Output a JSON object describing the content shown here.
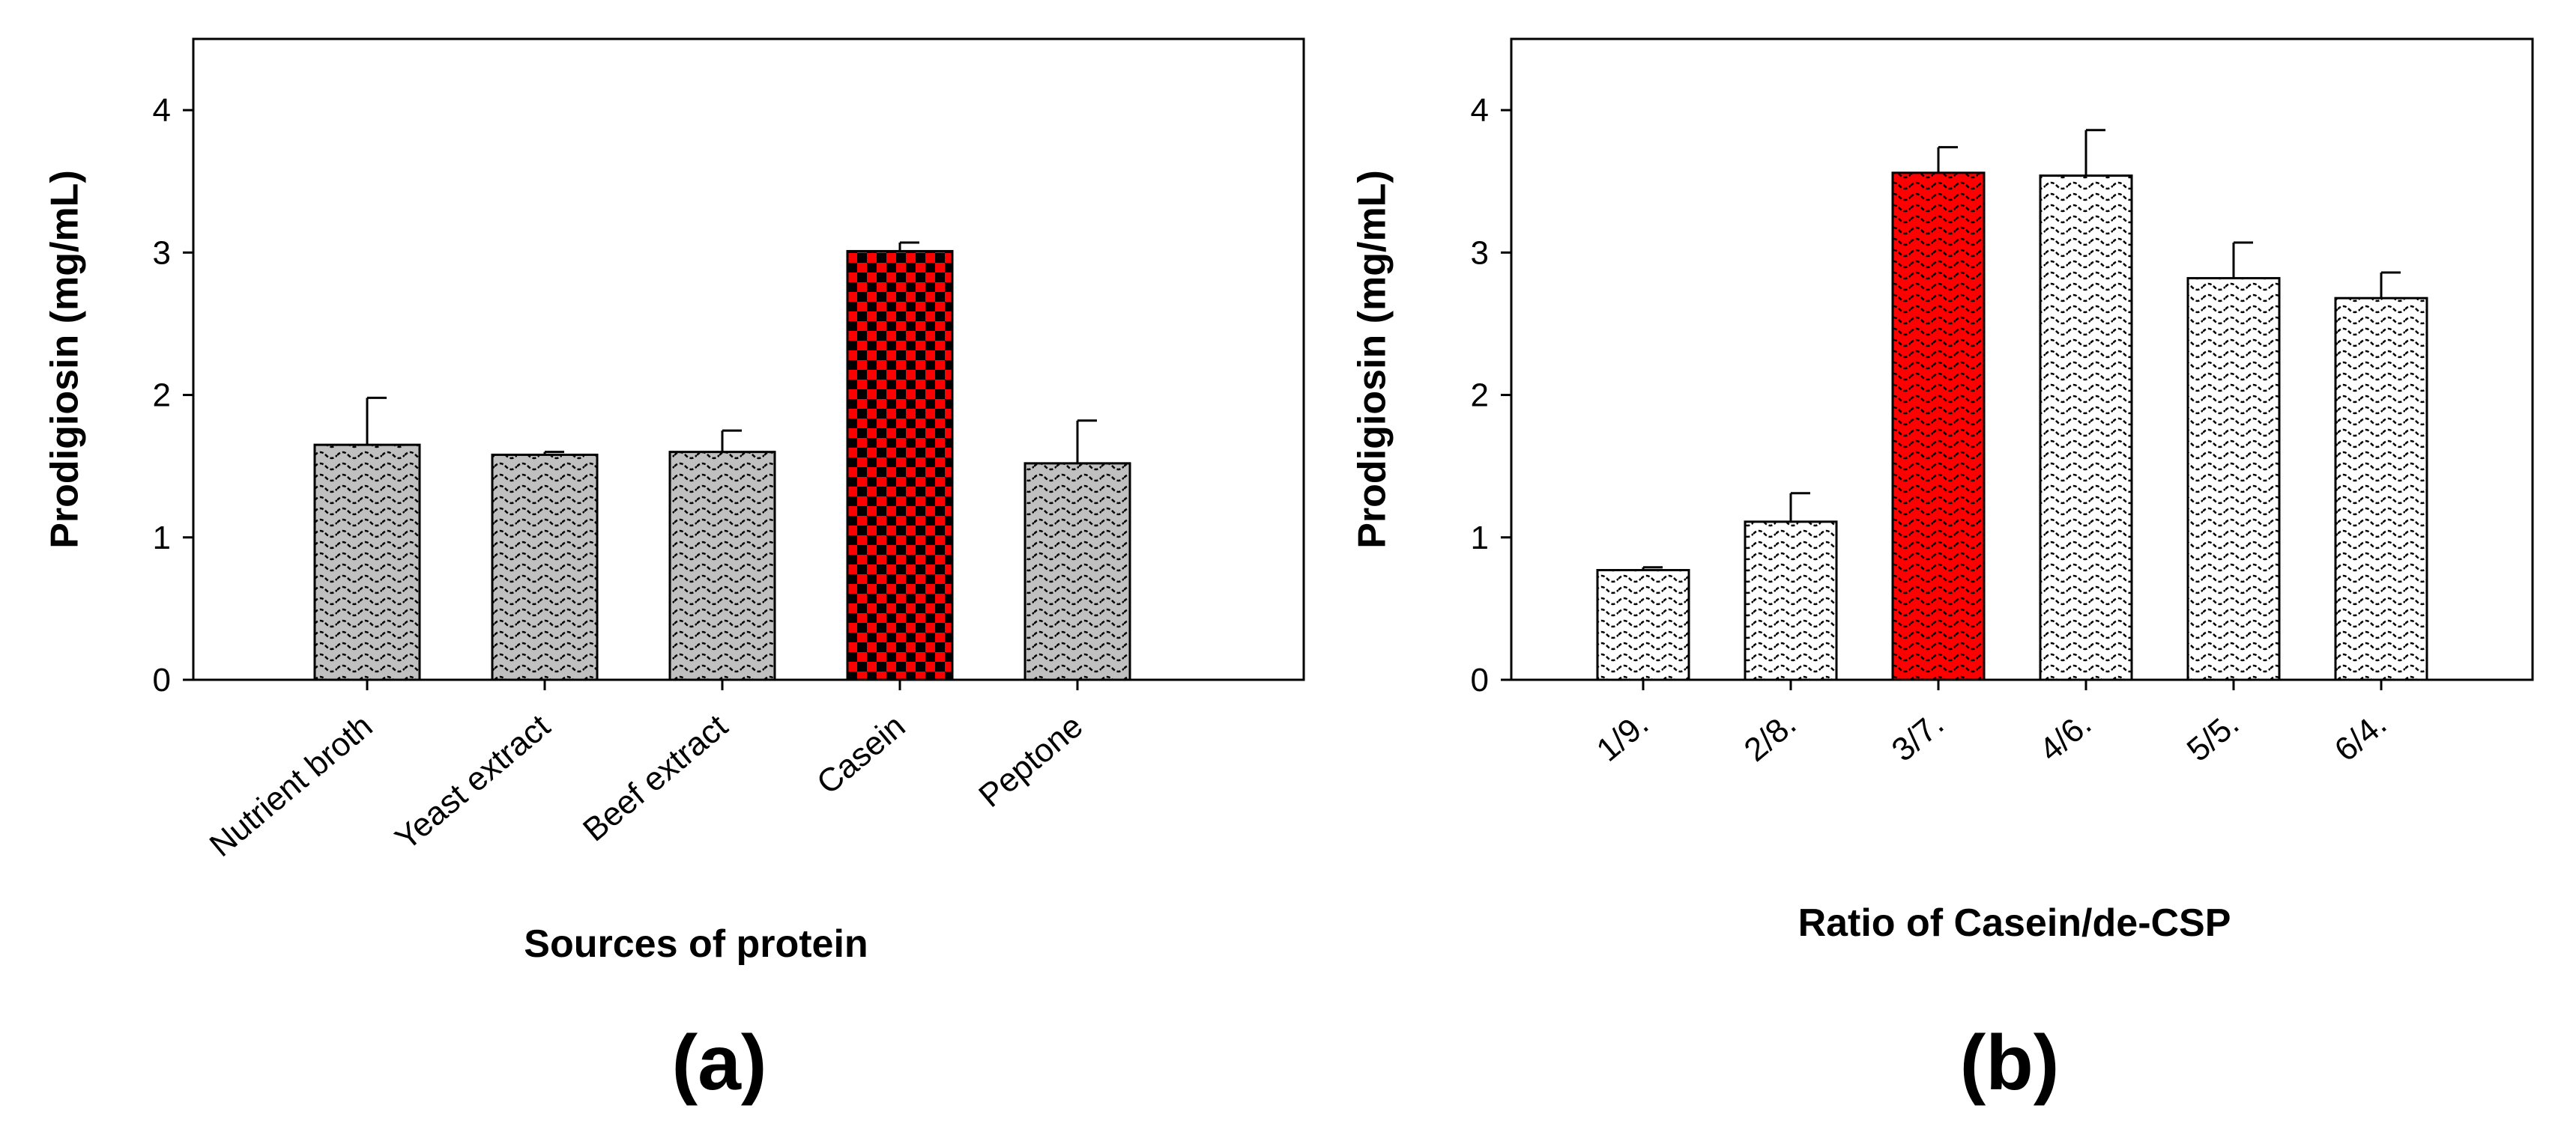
{
  "chart_data": [
    {
      "type": "bar",
      "panel_label": "(a)",
      "title": "",
      "xlabel": "Sources of protein",
      "ylabel": "Prodigiosin (mg/mL)",
      "ylim": [
        0,
        4.5
      ],
      "yticks": [
        0,
        1,
        2,
        3,
        4
      ],
      "ytick_labels": [
        "0",
        "1",
        "2",
        "3",
        "4"
      ],
      "categories": [
        "Nutrient broth",
        "Yeast extract",
        "Beef extract",
        "Casein",
        "Peptone"
      ],
      "values": [
        1.65,
        1.58,
        1.6,
        3.01,
        1.52
      ],
      "errors": [
        0.33,
        0.02,
        0.15,
        0.06,
        0.3
      ],
      "highlight_index": 3,
      "bar_color": "#c0c0c0",
      "highlight_color": "#ff0000",
      "grid": false,
      "legend": "none"
    },
    {
      "type": "bar",
      "panel_label": "(b)",
      "title": "",
      "xlabel": "Ratio of Casein/de-CSP",
      "ylabel": "Prodigiosin (mg/mL)",
      "ylim": [
        0,
        4.5
      ],
      "yticks": [
        0,
        1,
        2,
        3,
        4
      ],
      "ytick_labels": [
        "0",
        "1",
        "2",
        "3",
        "4"
      ],
      "categories": [
        "1/9.",
        "2/8.",
        "3/7.",
        "4/6.",
        "5/5.",
        "6/4."
      ],
      "values": [
        0.77,
        1.11,
        3.56,
        3.54,
        2.82,
        2.68
      ],
      "errors": [
        0.02,
        0.2,
        0.18,
        0.32,
        0.25,
        0.18
      ],
      "highlight_index": 2,
      "bar_color": "#ffffff",
      "highlight_color": "#ff0000",
      "grid": false,
      "legend": "none"
    }
  ]
}
